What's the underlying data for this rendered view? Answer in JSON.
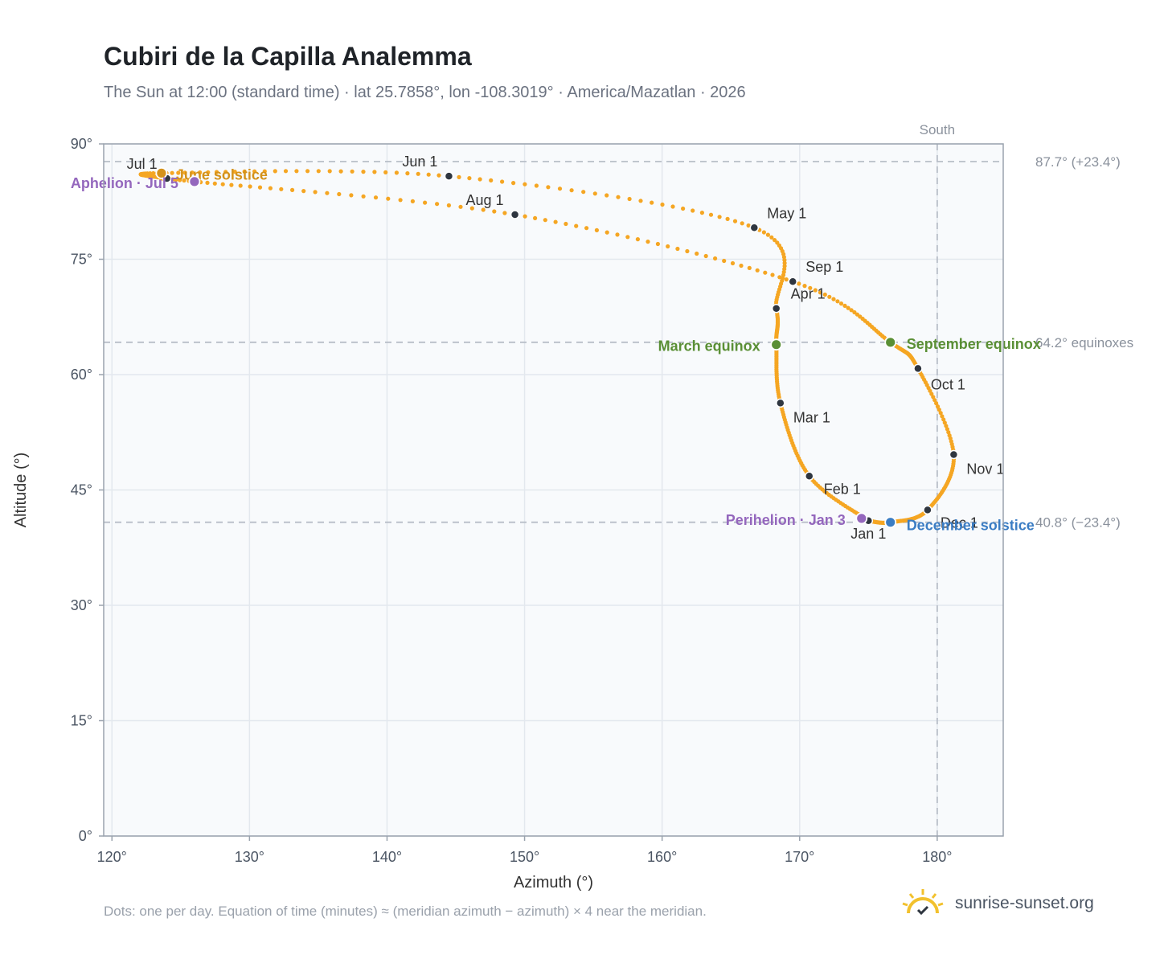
{
  "title": "Cubiri de la Capilla Analemma",
  "subtitle": "The Sun at 12:00 (standard time) · lat 25.7858°, lon -108.3019° · America/Mazatlan · 2026",
  "footnote": "Dots: one per day. Equation of time (minutes) ≈ (meridian azimuth − azimuth) × 4 near the meridian.",
  "brand": {
    "text": "sunrise-sunset.org",
    "icon": "sun-logo-icon",
    "color": "#f2c12e"
  },
  "colors": {
    "path": "#f5a623",
    "month_marker": "#2f3640",
    "solstice_june": "#d4921a",
    "equinox": "#5a8f35",
    "solstice_december": "#3b7dc4",
    "apsis": "#9467bd",
    "reference_line": "#b8bec8",
    "plot_background": "#f8fafc"
  },
  "chart_data": {
    "type": "scatter",
    "title": "Cubiri de la Capilla Analemma",
    "xlabel": "Azimuth (°)",
    "ylabel": "Altitude (°)",
    "xlim": [
      119.4,
      184.8
    ],
    "ylim": [
      0,
      90
    ],
    "xticks": [
      120,
      130,
      140,
      150,
      160,
      170,
      180
    ],
    "yticks": [
      0,
      15,
      30,
      45,
      60,
      75,
      90
    ],
    "xtick_labels": [
      "120°",
      "130°",
      "140°",
      "150°",
      "160°",
      "170°",
      "180°"
    ],
    "ytick_labels": [
      "0°",
      "15°",
      "30°",
      "45°",
      "60°",
      "75°",
      "90°"
    ],
    "grid": true,
    "path_keypoints": [
      {
        "date": "Jan 1",
        "az": 175.0,
        "alt": 41.0
      },
      {
        "date": "Feb 1",
        "az": 170.7,
        "alt": 46.8
      },
      {
        "date": "Mar 1",
        "az": 168.6,
        "alt": 56.3
      },
      {
        "date": "Mar 20",
        "az": 168.3,
        "alt": 63.9
      },
      {
        "date": "Apr 1",
        "az": 168.3,
        "alt": 68.6
      },
      {
        "date": "May 1",
        "az": 166.7,
        "alt": 79.1
      },
      {
        "date": "Jun 1",
        "az": 144.5,
        "alt": 85.8
      },
      {
        "date": "Jun 21",
        "az": 123.6,
        "alt": 86.2
      },
      {
        "date": "Jul 1",
        "az": 124.0,
        "alt": 85.5
      },
      {
        "date": "Jul 5",
        "az": 126.0,
        "alt": 85.1
      },
      {
        "date": "Aug 1",
        "az": 149.3,
        "alt": 80.8
      },
      {
        "date": "Sep 1",
        "az": 169.5,
        "alt": 72.1
      },
      {
        "date": "Sep 22",
        "az": 176.6,
        "alt": 64.2
      },
      {
        "date": "Oct 1",
        "az": 178.6,
        "alt": 60.8
      },
      {
        "date": "Nov 1",
        "az": 181.2,
        "alt": 49.6
      },
      {
        "date": "Dec 1",
        "az": 179.3,
        "alt": 42.4
      },
      {
        "date": "Dec 21",
        "az": 176.6,
        "alt": 40.8
      },
      {
        "date": "Jan 1",
        "az": 175.0,
        "alt": 41.0
      }
    ],
    "month_markers": [
      {
        "label": "Jan 1",
        "az": 175.0,
        "alt": 41.0
      },
      {
        "label": "Feb 1",
        "az": 170.7,
        "alt": 46.8
      },
      {
        "label": "Mar 1",
        "az": 168.6,
        "alt": 56.3
      },
      {
        "label": "Apr 1",
        "az": 168.3,
        "alt": 68.6
      },
      {
        "label": "May 1",
        "az": 166.7,
        "alt": 79.1
      },
      {
        "label": "Jun 1",
        "az": 144.5,
        "alt": 85.8
      },
      {
        "label": "Jul 1",
        "az": 124.0,
        "alt": 85.5
      },
      {
        "label": "Aug 1",
        "az": 149.3,
        "alt": 80.8
      },
      {
        "label": "Sep 1",
        "az": 169.5,
        "alt": 72.1
      },
      {
        "label": "Oct 1",
        "az": 178.6,
        "alt": 60.8
      },
      {
        "label": "Nov 1",
        "az": 181.2,
        "alt": 49.6
      },
      {
        "label": "Dec 1",
        "az": 179.3,
        "alt": 42.4
      }
    ],
    "events": [
      {
        "label": "June solstice",
        "az": 123.6,
        "alt": 86.2,
        "kind": "solstice_june"
      },
      {
        "label": "March equinox",
        "az": 168.3,
        "alt": 63.9,
        "kind": "equinox"
      },
      {
        "label": "September equinox",
        "az": 176.6,
        "alt": 64.2,
        "kind": "equinox"
      },
      {
        "label": "December solstice",
        "az": 176.6,
        "alt": 40.8,
        "kind": "solstice_december"
      },
      {
        "label": "Aphelion · Jul 5",
        "az": 126.0,
        "alt": 85.1,
        "kind": "apsis"
      },
      {
        "label": "Perihelion · Jan 3",
        "az": 174.5,
        "alt": 41.3,
        "kind": "apsis"
      }
    ],
    "reference_lines": [
      {
        "alt": 87.7,
        "label": "87.7° (+23.4°)"
      },
      {
        "alt": 64.2,
        "label": "64.2° equinoxes"
      },
      {
        "alt": 40.8,
        "label": "40.8° (−23.4°)"
      }
    ],
    "south_line": {
      "az": 180,
      "label": "South"
    }
  }
}
